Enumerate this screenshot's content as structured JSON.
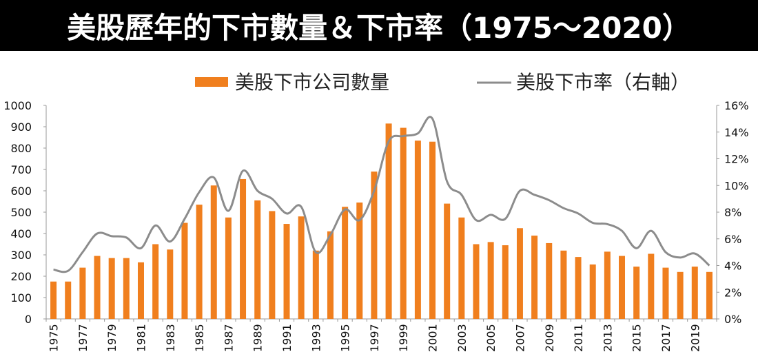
{
  "title": "美股歷年的下市數量＆下市率（1975～2020）",
  "chart_data": {
    "type": "bar",
    "title": "美股歷年的下市數量＆下市率（1975～2020）",
    "x": [
      1975,
      1976,
      1977,
      1978,
      1979,
      1980,
      1981,
      1982,
      1983,
      1984,
      1985,
      1986,
      1987,
      1988,
      1989,
      1990,
      1991,
      1992,
      1993,
      1994,
      1995,
      1996,
      1997,
      1998,
      1999,
      2000,
      2001,
      2002,
      2003,
      2004,
      2005,
      2006,
      2007,
      2008,
      2009,
      2010,
      2011,
      2012,
      2013,
      2014,
      2015,
      2016,
      2017,
      2018,
      2019,
      2020
    ],
    "x_tick_labels": [
      "1975",
      "1977",
      "1979",
      "1981",
      "1983",
      "1985",
      "1987",
      "1989",
      "1991",
      "1993",
      "1995",
      "1997",
      "1999",
      "2001",
      "2003",
      "2005",
      "2007",
      "2009",
      "2011",
      "2013",
      "2015",
      "2017",
      "2019"
    ],
    "y_left": {
      "range": [
        0,
        1000
      ],
      "ticks": [
        "0",
        "100",
        "200",
        "300",
        "400",
        "500",
        "600",
        "700",
        "800",
        "900",
        "1000"
      ]
    },
    "y_right": {
      "range": [
        0,
        16
      ],
      "unit": "%",
      "ticks": [
        "0%",
        "2%",
        "4%",
        "6%",
        "8%",
        "10%",
        "12%",
        "14%",
        "16%"
      ]
    },
    "series": [
      {
        "name": "美股下市公司數量",
        "type": "bar",
        "axis": "left",
        "color": "#F07F1E",
        "values": [
          175,
          175,
          240,
          295,
          285,
          285,
          265,
          350,
          325,
          450,
          535,
          625,
          475,
          655,
          555,
          505,
          445,
          480,
          320,
          410,
          525,
          545,
          690,
          915,
          895,
          835,
          830,
          540,
          475,
          350,
          360,
          345,
          425,
          390,
          355,
          320,
          290,
          255,
          315,
          295,
          245,
          305,
          240,
          220,
          245,
          220
        ]
      },
      {
        "name": "美股下市率（右軸）",
        "type": "line",
        "axis": "right",
        "color": "#8C8C8C",
        "values": [
          3.7,
          3.6,
          5.0,
          6.4,
          6.2,
          6.1,
          5.3,
          7.0,
          5.8,
          7.5,
          9.5,
          10.6,
          8.1,
          11.1,
          9.6,
          9.0,
          7.9,
          8.4,
          5.0,
          6.3,
          8.2,
          7.4,
          9.6,
          13.3,
          13.7,
          13.9,
          15.0,
          10.3,
          9.3,
          7.4,
          7.8,
          7.5,
          9.6,
          9.3,
          8.9,
          8.3,
          7.9,
          7.2,
          7.1,
          6.6,
          5.3,
          6.6,
          5.0,
          4.6,
          4.9,
          4.0
        ]
      }
    ],
    "legend": {
      "placement": "top"
    },
    "grid": false
  }
}
